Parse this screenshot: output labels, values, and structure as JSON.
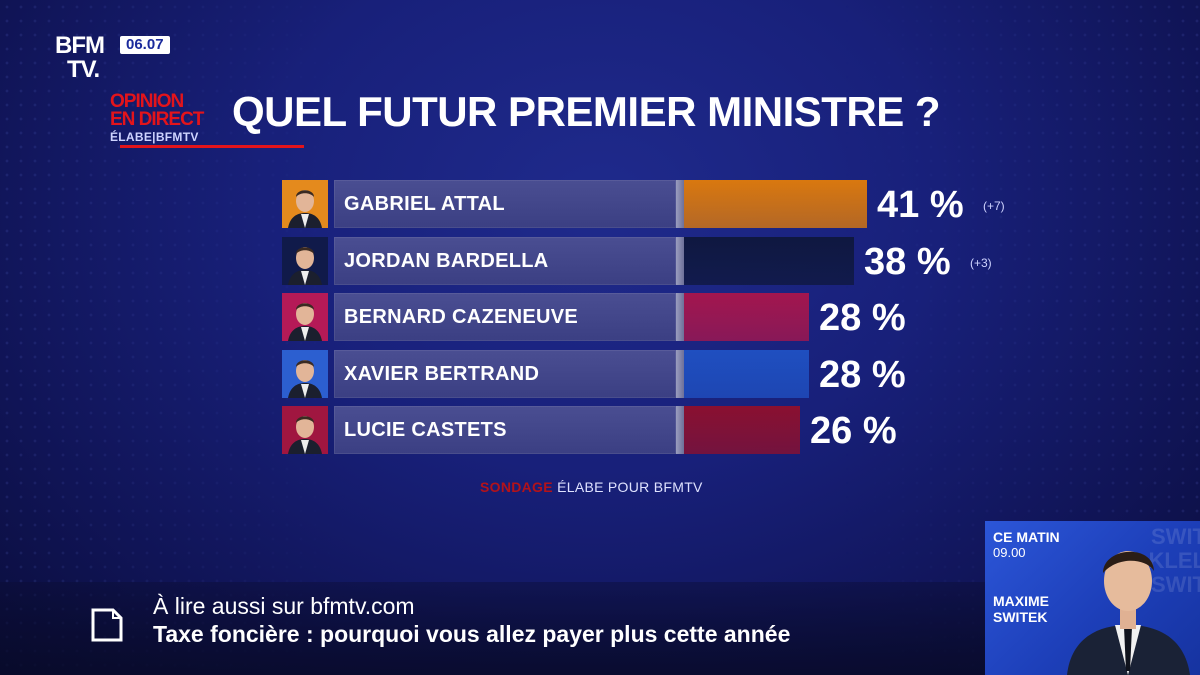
{
  "channel": {
    "logo_line1": "BFM",
    "logo_line2": "TV.",
    "clock": "06.07"
  },
  "badge": {
    "line1": "OPINION",
    "line2": "EN DIRECT",
    "sub": "ÉLABE|BFMTV"
  },
  "headline": "QUEL FUTUR PREMIER MINISTRE ?",
  "chart_data": {
    "type": "bar",
    "orientation": "horizontal",
    "categories": [
      "GABRIEL ATTAL",
      "JORDAN BARDELLA",
      "BERNARD CAZENEUVE",
      "XAVIER BERTRAND",
      "LUCIE CASTETS"
    ],
    "values": [
      41,
      38,
      28,
      28,
      26
    ],
    "value_labels": [
      "41 %",
      "38 %",
      "28 %",
      "28 %",
      "26 %"
    ],
    "changes": [
      "(+7)",
      "(+3)",
      "",
      "",
      ""
    ],
    "unit": "%",
    "colors": [
      "#d9780f",
      "#0f1840",
      "#a3164e",
      "#1f4fc0",
      "#8a1030"
    ],
    "portrait_colors": [
      "#e48a1d",
      "#101a4a",
      "#b51a57",
      "#2c5fd0",
      "#a01640"
    ],
    "xlim": [
      0,
      41
    ]
  },
  "source": {
    "label": "SONDAGE",
    "text": "ÉLABE POUR BFMTV"
  },
  "ticker": {
    "line1": "À lire aussi sur bfmtv.com",
    "line2": "Taxe foncière : pourquoi vous allez payer plus cette année",
    "icon": "document-icon"
  },
  "inset": {
    "show": "CE MATIN",
    "time": "09.00",
    "host_first": "MAXIME",
    "host_last": "SWITEK",
    "watermark": "SWIT\nKLEL\nSWIT"
  }
}
